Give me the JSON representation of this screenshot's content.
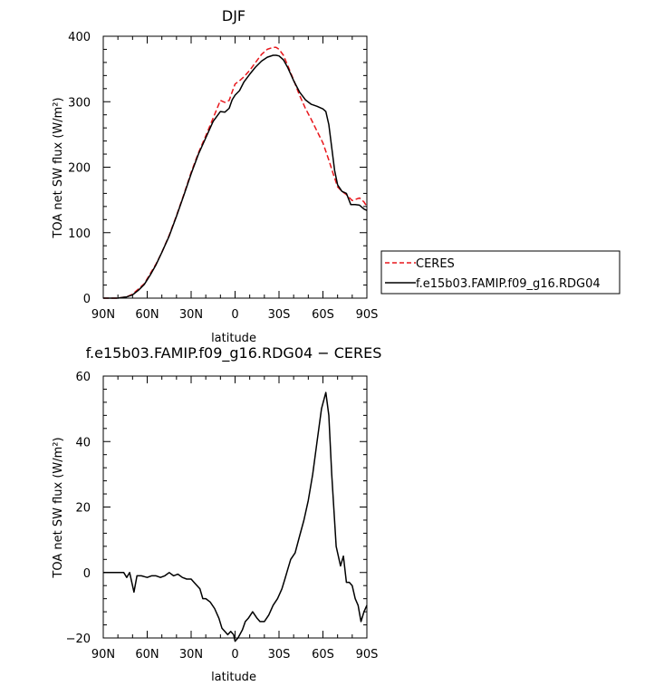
{
  "chart_data": [
    {
      "type": "line",
      "title": "DJF",
      "xlabel": "latitude",
      "ylabel": "TOA net SW flux (W/m²)",
      "xlim": [
        90,
        -90
      ],
      "ylim": [
        0,
        400
      ],
      "x_ticks": [
        90,
        60,
        30,
        0,
        -30,
        -60,
        -90
      ],
      "x_tick_labels": [
        "90N",
        "60N",
        "30N",
        "0",
        "30S",
        "60S",
        "90S"
      ],
      "y_ticks": [
        0,
        100,
        200,
        300,
        400
      ],
      "y_tick_labels": [
        "0",
        "100",
        "200",
        "300",
        "400"
      ],
      "legend_position": "outside-right",
      "series": [
        {
          "name": "CERES",
          "color": "#e8161b",
          "dashed": true,
          "x": [
            90,
            85,
            80,
            77,
            74,
            70,
            66,
            62,
            58,
            54,
            50,
            45,
            40,
            35,
            30,
            25,
            20,
            15,
            10,
            7,
            4,
            2,
            0,
            -3,
            -6,
            -10,
            -14,
            -18,
            -22,
            -26,
            -28,
            -30,
            -33,
            -36,
            -40,
            -44,
            -48,
            -52,
            -56,
            -60,
            -64,
            -67,
            -70,
            -73,
            -76,
            -80,
            -85,
            -88,
            -90
          ],
          "y": [
            0,
            0,
            0,
            1,
            2,
            6,
            14,
            22,
            37,
            52,
            70,
            96,
            126,
            158,
            192,
            222,
            248,
            275,
            302,
            299,
            302,
            315,
            327,
            332,
            338,
            348,
            360,
            372,
            380,
            383,
            383,
            380,
            371,
            355,
            333,
            310,
            290,
            273,
            255,
            237,
            211,
            190,
            170,
            163,
            158,
            149,
            153,
            147,
            140
          ]
        },
        {
          "name": "f.e15b03.FAMIP.f09_g16.RDG04",
          "color": "#000000",
          "dashed": false,
          "x": [
            90,
            85,
            80,
            77,
            74,
            70,
            66,
            62,
            58,
            54,
            50,
            45,
            40,
            35,
            30,
            25,
            20,
            15,
            10,
            7,
            4,
            2,
            0,
            -3,
            -6,
            -10,
            -14,
            -18,
            -22,
            -26,
            -28,
            -30,
            -33,
            -36,
            -40,
            -44,
            -48,
            -52,
            -56,
            -60,
            -62,
            -64,
            -66,
            -68,
            -70,
            -73,
            -76,
            -79,
            -82,
            -85,
            -88,
            -90
          ],
          "y": [
            0,
            0,
            0,
            1,
            2,
            5,
            12,
            21,
            35,
            51,
            70,
            95,
            125,
            157,
            190,
            220,
            245,
            270,
            285,
            284,
            290,
            303,
            310,
            317,
            330,
            342,
            353,
            362,
            368,
            371,
            371,
            370,
            364,
            352,
            332,
            315,
            303,
            296,
            293,
            289,
            285,
            265,
            230,
            195,
            173,
            163,
            160,
            143,
            143,
            142,
            136,
            134
          ]
        }
      ]
    },
    {
      "type": "line",
      "title": "f.e15b03.FAMIP.f09_g16.RDG04 − CERES",
      "xlabel": "latitude",
      "ylabel": "TOA net SW flux (W/m²)",
      "xlim": [
        90,
        -90
      ],
      "ylim": [
        -20,
        60
      ],
      "x_ticks": [
        90,
        60,
        30,
        0,
        -30,
        -60,
        -90
      ],
      "x_tick_labels": [
        "90N",
        "60N",
        "30N",
        "0",
        "30S",
        "60S",
        "90S"
      ],
      "y_ticks": [
        -20,
        0,
        20,
        40,
        60
      ],
      "y_tick_labels": [
        "−20",
        "0",
        "20",
        "40",
        "60"
      ],
      "series": [
        {
          "color": "#000000",
          "x": [
            90,
            85,
            80,
            76,
            74,
            72,
            69,
            67,
            64,
            60,
            57,
            54,
            51,
            48,
            45,
            42,
            39,
            36,
            33,
            30,
            28,
            26,
            24,
            22,
            20,
            17,
            14,
            11,
            9,
            7,
            5,
            3,
            1,
            0,
            -2,
            -5,
            -7,
            -9,
            -12,
            -15,
            -17,
            -20,
            -23,
            -26,
            -29,
            -32,
            -34,
            -36,
            -38,
            -41,
            -44,
            -47,
            -50,
            -53,
            -56,
            -59,
            -62,
            -64,
            -66,
            -69,
            -72,
            -74,
            -76,
            -78,
            -80,
            -82,
            -84,
            -86,
            -88,
            -90
          ],
          "y": [
            0,
            0,
            0,
            0,
            -1.5,
            0,
            -6,
            -1,
            -1,
            -1.5,
            -1,
            -1,
            -1.5,
            -1,
            0,
            -1,
            -0.5,
            -1.5,
            -2,
            -2,
            -3,
            -4,
            -5,
            -8,
            -8,
            -9,
            -11,
            -14,
            -17,
            -18,
            -19,
            -18,
            -19,
            -21,
            -20,
            -17.5,
            -15,
            -14,
            -12,
            -14,
            -15,
            -15,
            -13,
            -10,
            -8,
            -5,
            -2,
            1,
            4,
            6,
            11,
            16,
            22,
            30,
            40,
            50,
            55,
            48,
            30,
            8,
            2,
            5,
            -3,
            -3,
            -4,
            -8,
            -10,
            -15,
            -12,
            -10
          ]
        }
      ]
    }
  ]
}
